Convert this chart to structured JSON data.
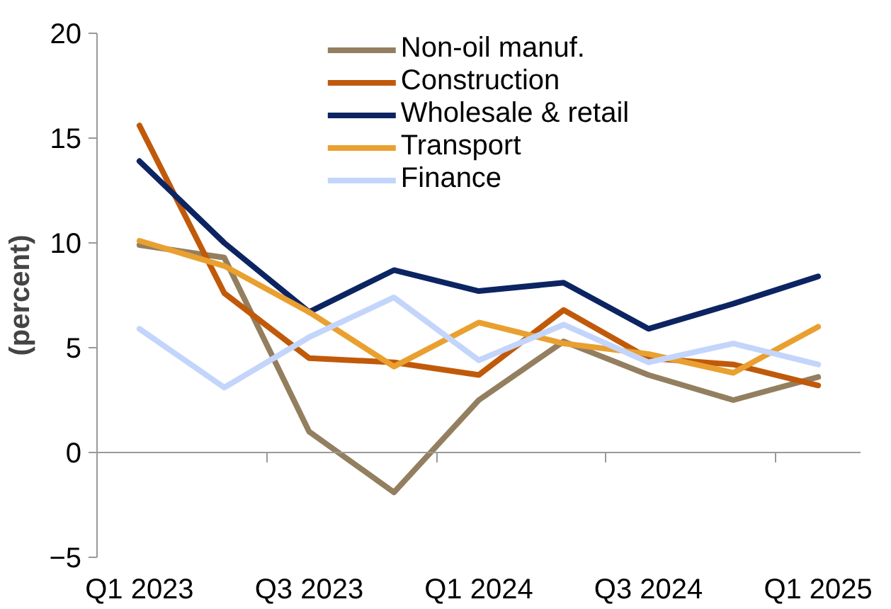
{
  "chart_data": {
    "type": "line",
    "ylabel": "(percent)",
    "categories": [
      "Q1 2023",
      null,
      "Q3 2023",
      null,
      "Q1 2024",
      null,
      "Q3 2024",
      null,
      "Q1 2025"
    ],
    "ylim": [
      -5,
      20
    ],
    "yticks": [
      -5,
      0,
      5,
      10,
      15,
      20
    ],
    "legend": "top",
    "line_style": "solid",
    "series": [
      {
        "name": "Non-oil manuf.",
        "color": "#937f5f",
        "values": [
          9.9,
          9.3,
          1.0,
          -1.9,
          2.5,
          5.3,
          3.7,
          2.5,
          3.6
        ]
      },
      {
        "name": "Construction",
        "color": "#c05a0a",
        "values": [
          15.6,
          7.6,
          4.5,
          4.3,
          3.7,
          6.8,
          4.5,
          4.2,
          3.2
        ]
      },
      {
        "name": "Wholesale & retail",
        "color": "#0c2462",
        "values": [
          13.9,
          10.0,
          6.7,
          8.7,
          7.7,
          8.1,
          5.9,
          7.1,
          8.4
        ]
      },
      {
        "name": "Transport",
        "color": "#e9a030",
        "values": [
          10.1,
          8.9,
          6.7,
          4.1,
          6.2,
          5.2,
          4.7,
          3.8,
          6.0
        ]
      },
      {
        "name": "Finance",
        "color": "#c3d5fb",
        "values": [
          5.9,
          3.1,
          5.5,
          7.4,
          4.4,
          6.1,
          4.3,
          5.2,
          4.2
        ]
      }
    ]
  }
}
